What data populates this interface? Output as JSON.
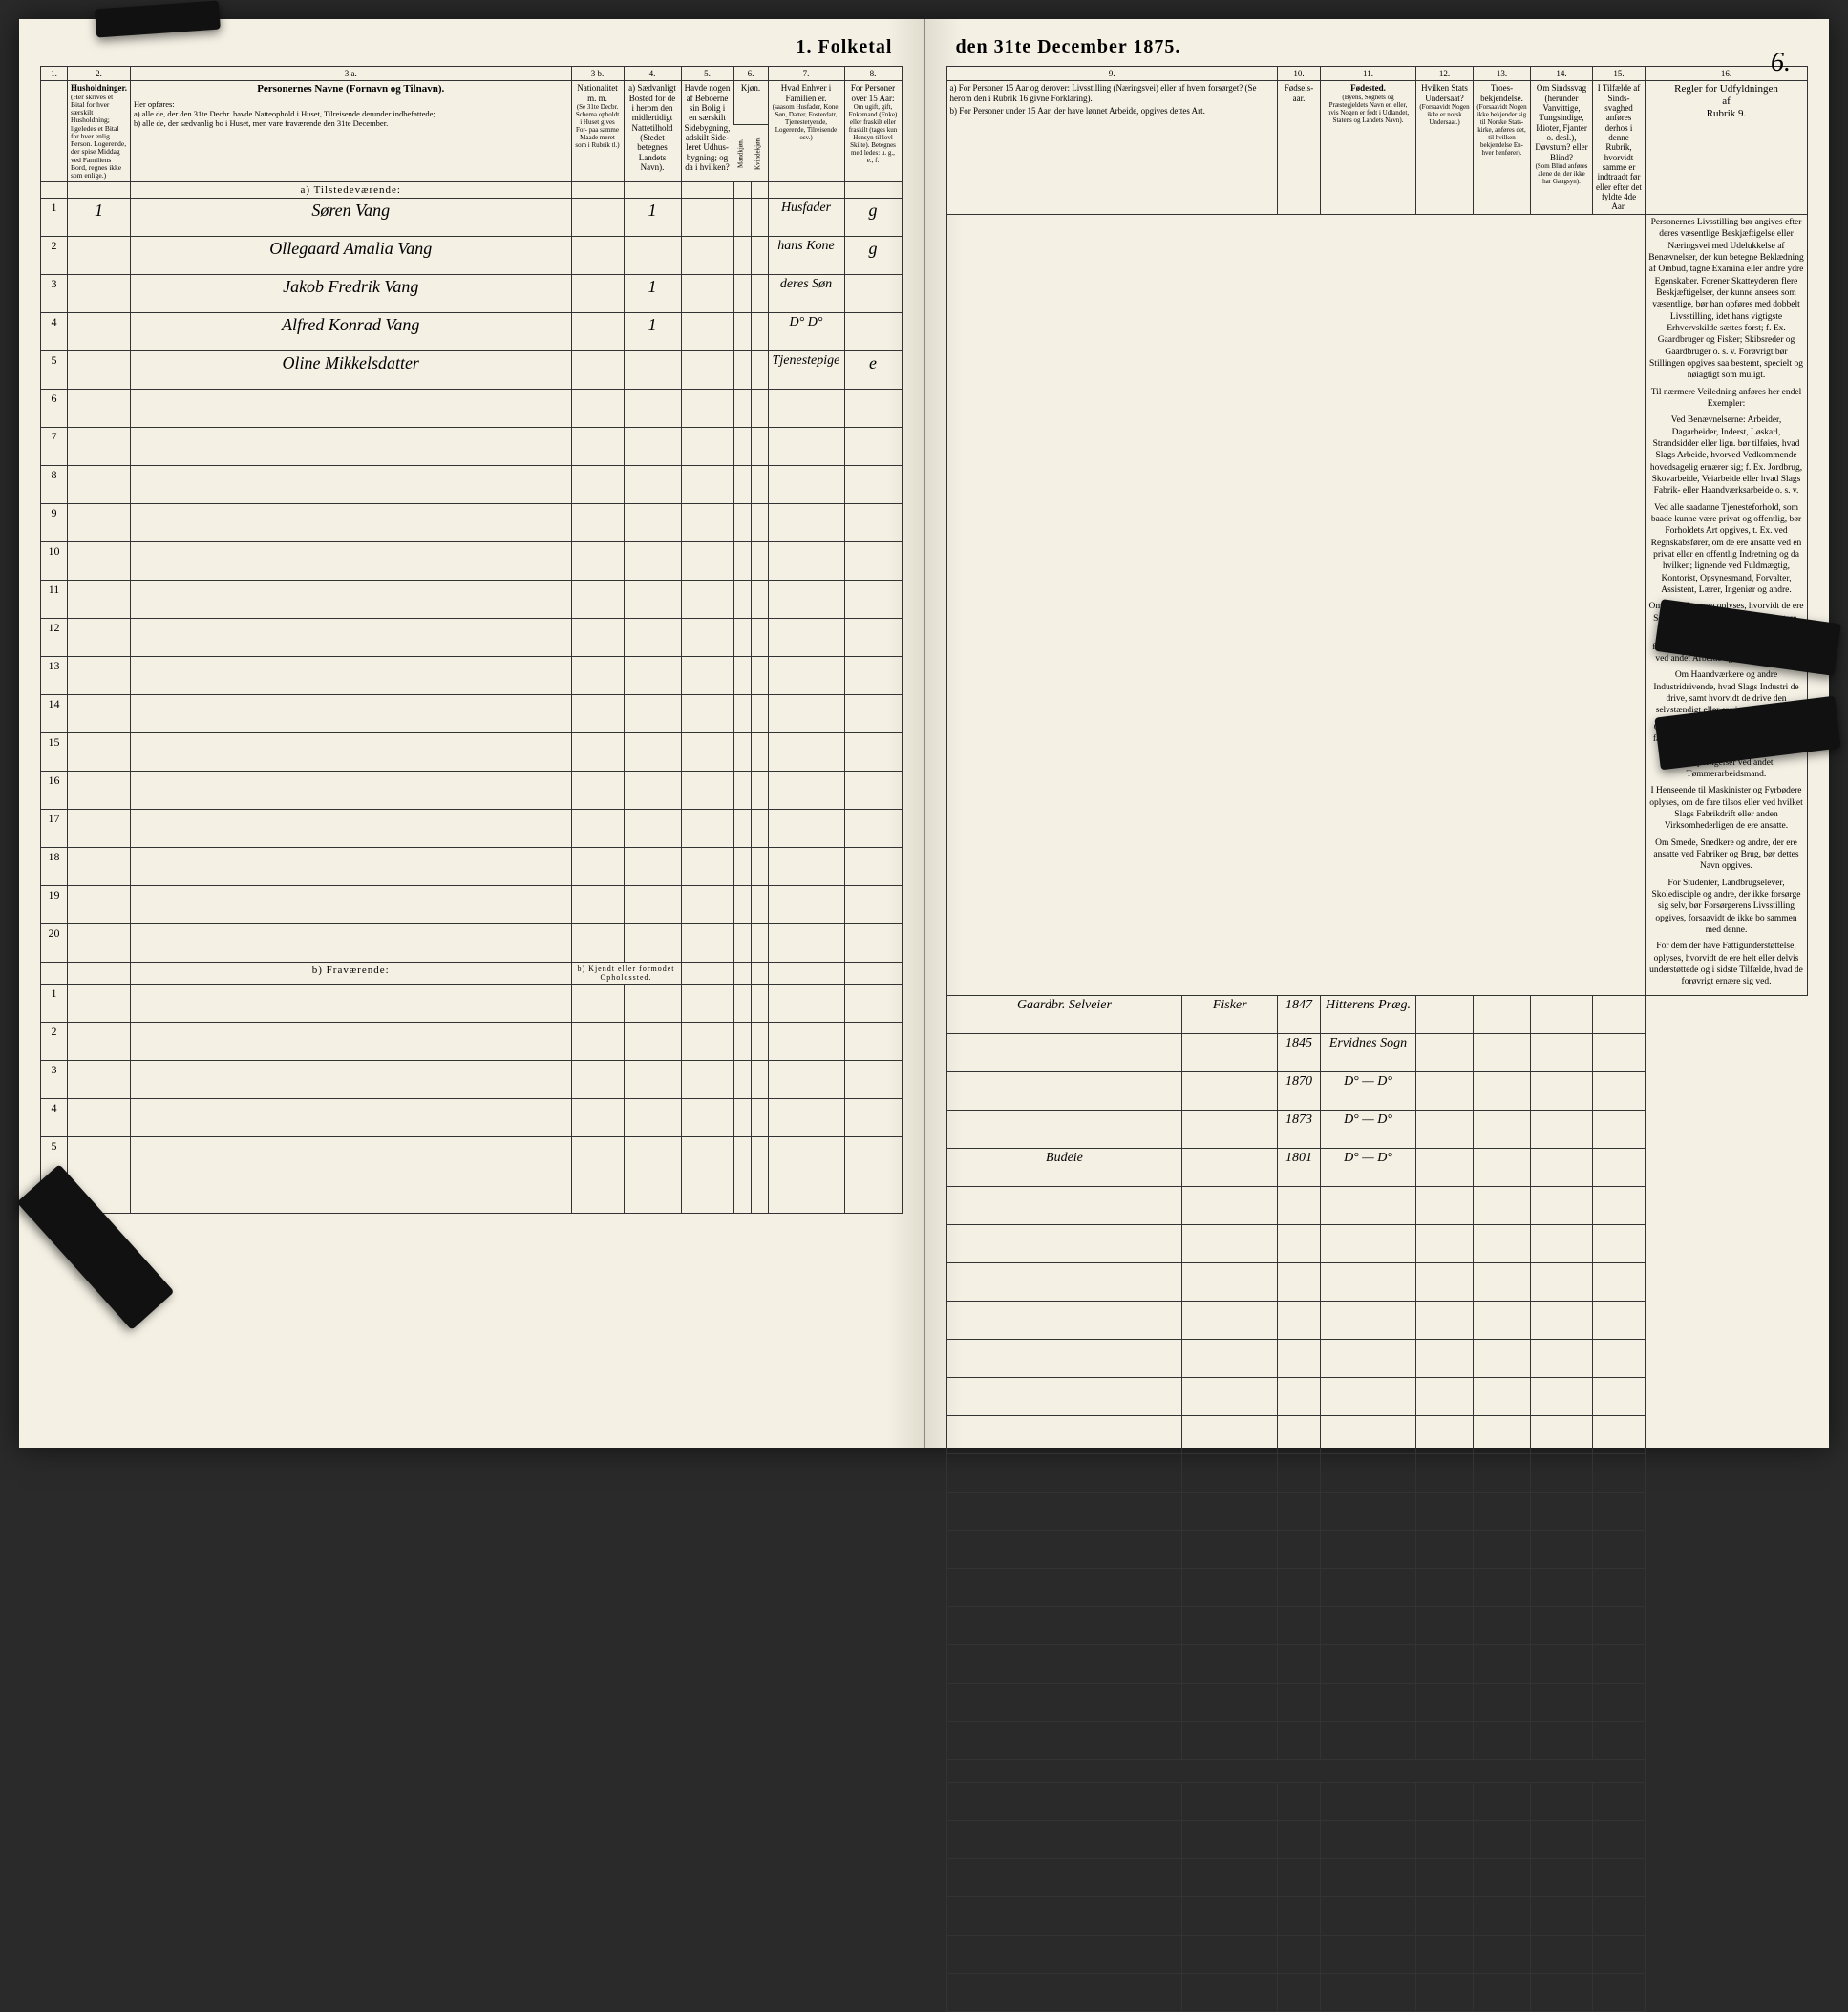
{
  "title_left": "1.  Folketal",
  "title_right": "den 31te December 1875.",
  "page_number": "6.",
  "col_heads": {
    "c1": "1.",
    "c2": "2.",
    "c3a": "3 a.",
    "c3b": "3 b.",
    "c4": "4.",
    "c5": "5.",
    "c6": "6.",
    "c7": "7.",
    "c8": "8.",
    "c9": "9.",
    "c10": "10.",
    "c11": "11.",
    "c12": "12.",
    "c13": "13.",
    "c14": "14.",
    "c15": "15.",
    "c16": "16."
  },
  "heads": {
    "hushold_title": "Husholdninger.",
    "hushold_text": "(Her skrives et Bital for hver særskilt Husholdning; ligeledes et Bital for hver enlig Person. Logerende, der spise Middag ved Familiens Bord, regnes ikke som enlige.)",
    "navne_title": "Personernes Navne (Fornavn og Tilnavn).",
    "navne_text": "Her opføres:\na) alle de, der den 31te Decbr. havde Natteophold i Huset, Tilreisende derunder indbefattede;\nb) alle de, der sædvanlig bo i Huset, men vare fraværende den 31te December.",
    "national": "Nationalitet m. m.",
    "national_sub": "(Se 31te Decbr. Schema opholdt i Huset gives For- paa samme Maade meret som i Rubrik tl.)",
    "bosted_a": "a) Sædvanligt Bosted for de i herom den midlertidigt Nattetilhold (Stedet betegnes Landets Navn).",
    "havde": "Havde nogen af Beboerne sin Bolig i en særskilt Sidebygning, adskilt Side- leret Udhus-bygning; og da i hvilken?",
    "kjon": "Kjøn.",
    "kjon_sub_m": "Mandkjøn.",
    "kjon_sub_k": "Kvindekjøn.",
    "hvad": "Hvad Enhver i Familien er.",
    "hvad_sub": "(saasom Husfader, Kone, Søn, Datter, Fosterdatr, Tjenestetyende, Logerende, Tilreisende osv.)",
    "over15": "For Personer over 15 Aar:",
    "over15_sub": "Om ugift, gift, Enkemand (Enke) eller fraskilt eller fraskilt (tages kun Hensyn til lovl Skilte).\nBetegnes med ledes: u. g., e., f.",
    "livs_a": "a) For Personer 15 Aar og derover: Livsstilling (Næringsvei) eller af hvem forsørget? (Se herom den i Rubrik 16 givne Forklaring).",
    "livs_b": "b) For Personer under 15 Aar, der have lønnet Arbeide, opgives dettes Art.",
    "fodsels": "Fødsels- aar.",
    "fodested": "Fødested.",
    "fodested_sub": "(Byens, Sognets og Præstegjeldets Navn er, eller, hvis Nogen er født i Udlandet, Statens og Landets Navn).",
    "stats": "Hvilken Stats Undersaat?",
    "stats_sub": "(Forsaavidt Nogen ikke er norsk Undersaat.)",
    "troes": "Troes- bekjendelse.",
    "troes_sub": "(Forsaavidt Nogen ikke bekjender sig til Norske Stats-kirke, anføres det, til hvilken bekjendelse En-hver henfører).",
    "sindssvag": "Om Sindssvag (herunder Vanvittige, Tungsindige, Idioter, Fjanter o. desl.), Døvstum? eller Blind?",
    "sindssvag_sub": "(Som Blind anføres alene de, der ikke har Gangsyn).",
    "tilfalde": "I Tilfælde af Sinds-svaghed anføres derhos i denne Rubrik, hvorvidt samme er indtraadt før eller efter det fyldte 4de Aar.",
    "regler": "Regler for Udfyldningen\naf\nRubrik 9."
  },
  "section_a": "a) Tilstedeværende:",
  "section_b": "b) Fraværende:",
  "section_b_sub": "b) Kjendt eller formodet Opholdssted.",
  "entries": [
    {
      "num": "1",
      "hh": "1",
      "name": "Søren Vang",
      "col4": "1",
      "fam": "Husfader",
      "civ": "g",
      "occ": "Gaardbr. Selveier",
      "occ2": "Fisker",
      "year": "1847",
      "place": "Hitterens Præg."
    },
    {
      "num": "2",
      "hh": "",
      "name": "Ollegaard Amalia Vang",
      "col4": "",
      "fam": "hans Kone",
      "civ": "g",
      "occ": "",
      "occ2": "",
      "year": "1845",
      "place": "Ervidnes Sogn"
    },
    {
      "num": "3",
      "hh": "",
      "name": "Jakob Fredrik Vang",
      "col4": "1",
      "fam": "deres Søn",
      "civ": "",
      "occ": "",
      "occ2": "",
      "year": "1870",
      "place": "D° — D°"
    },
    {
      "num": "4",
      "hh": "",
      "name": "Alfred Konrad Vang",
      "col4": "1",
      "fam": "D° D°",
      "civ": "",
      "occ": "",
      "occ2": "",
      "year": "1873",
      "place": "D° — D°"
    },
    {
      "num": "5",
      "hh": "",
      "name": "Oline Mikkelsdatter",
      "col4": "",
      "fam": "Tjenestepige",
      "civ": "e",
      "occ": "Budeie",
      "occ2": "",
      "year": "1801",
      "place": "D° — D°"
    }
  ],
  "empty_a": [
    "6",
    "7",
    "8",
    "9",
    "10",
    "11",
    "12",
    "13",
    "14",
    "15",
    "16",
    "17",
    "18",
    "19",
    "20"
  ],
  "empty_b": [
    "1",
    "2",
    "3",
    "4",
    "5",
    "6"
  ],
  "rules": {
    "p1": "Personernes Livsstilling bør angives efter deres væsentlige Beskjæftigelse eller Næringsvei med Udelukkelse af Benævnelser, der kun betegne Beklædning af Ombud, tagne Examina eller andre ydre Egenskaber. Forener Skatteyderen flere Beskjæftigelser, der kunne ansees som væsentlige, bør han opføres med dobbelt Livsstilling, idet hans vigtigste Erhvervskilde sættes forst; f. Ex. Gaardbruger og Fisker; Skibsreder og Gaardbruger o. s. v. Forøvrigt bør Stillingen opgives saa bestemt, specielt og nøiagtigt som muligt.",
    "p2": "Til nærmere Veiledning anføres her endel Exempler:",
    "p3": "Ved Benævnelserne: Arbeider, Dagarbeider, Inderst, Løskarl, Strandsidder eller lign. bør tilføies, hvad Slags Arbeide, hvorved Vedkommende hovedsagelig ernærer sig; f. Ex. Jordbrug, Skovarbeide, Veiarbeide eller hvad Slags Fabrik- eller Haandværksarbeide o. s. v.",
    "p4": "Ved alle saadanne Tjenesteforhold, som baade kunne være privat og offentlig, bør Forholdets Art opgives, t. Ex. ved Regnskabsfører, om de ere ansatte ved en privat eller en offentlig Indretning og da hvilken; lignende ved Fuldmægtig, Kontorist, Opsynesmand, Forvalter, Assistent, Lærer, Ingeniør og andre.",
    "p5": "Om Gaardbrugere oplyses, hvorvidt de ere Selveiere, Leilændinge eller Forpagtere.",
    "p6": "Om Husmænd oplyses, hvorvidt de forsørgelig ernære sig ved Jordbrug eller ved andet Arbeide og da af hvad Slags.",
    "p7": "Om Haandværkere og andre Industridrivende, hvad Slags Industri de drive, samt hvorvidt de drive den selvstændigt eller ere i andres Arbeide.",
    "p8": "Om Tømmermænd oplyses, hvorvidt de fare tilsos som Skibstømmermænd, eller arbeide paa Skibsværft, samt hvilke Beskjæftigelser ved andet Tømmerarbeidsmand.",
    "p9": "I Henseende til Maskinister og Fyrbødere oplyses, om de fare tilsos eller ved hvilket Slags Fabrikdrift eller anden Virksomhederligen de ere ansatte.",
    "p10": "Om Smede, Snedkere og andre, der ere ansatte ved Fabriker og Brug, bør dettes Navn opgives.",
    "p11": "For Studenter, Landbrugselever, Skoledisciple og andre, der ikke forsørge sig selv, bør Forsørgerens Livsstilling opgives, forsaavidt de ikke bo sammen med denne.",
    "p12": "For dem der have Fattigunderstøttelse, oplyses, hvorvidt de ere helt eller delvis understøttede og i sidste Tilfælde, hvad de forøvrigt ernære sig ved."
  }
}
